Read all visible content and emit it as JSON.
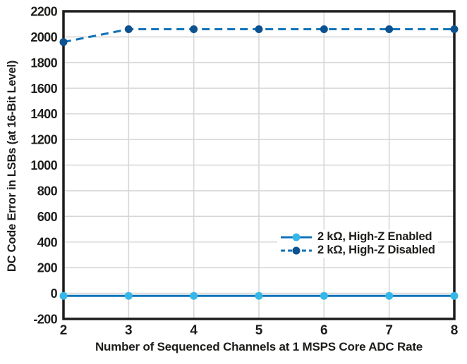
{
  "figure": {
    "background": "#ffffff"
  },
  "colors": {
    "axis_text": "#1d1d1b",
    "grid": "#d7d7d7",
    "frame": "#1c1c1c",
    "line_blue": "#1173b8",
    "marker_light_blue": "#35b7e8",
    "marker_dark_blue": "#0d5290"
  },
  "chart_data": {
    "type": "line",
    "title": "",
    "xlabel": "Number of Sequenced Channels at 1 MSPS Core ADC Rate",
    "ylabel": "DC Code Error in LSBs (at 16-Bit Level)",
    "x": [
      2,
      3,
      4,
      5,
      6,
      7,
      8
    ],
    "xlim": [
      2,
      8
    ],
    "ylim": [
      -200,
      2200
    ],
    "xticks": [
      2,
      3,
      4,
      5,
      6,
      7,
      8
    ],
    "yticks": [
      -200,
      0,
      200,
      400,
      600,
      800,
      1000,
      1200,
      1400,
      1600,
      1800,
      2000,
      2200
    ],
    "grid": true,
    "legend_position": "inside-right-middle",
    "series": [
      {
        "key": "enabled",
        "name": "2 kΩ, High-Z Enabled",
        "values": [
          -20,
          -20,
          -20,
          -20,
          -20,
          -20,
          -20
        ],
        "line_style": "solid",
        "line_color": "#1173b8",
        "marker": "circle",
        "marker_color": "#35b7e8"
      },
      {
        "key": "disabled",
        "name": "2 kΩ, High-Z Disabled",
        "values": [
          1960,
          2060,
          2060,
          2060,
          2060,
          2060,
          2060
        ],
        "line_style": "dashed",
        "line_color": "#1173b8",
        "marker": "circle",
        "marker_color": "#0d5290"
      }
    ]
  }
}
